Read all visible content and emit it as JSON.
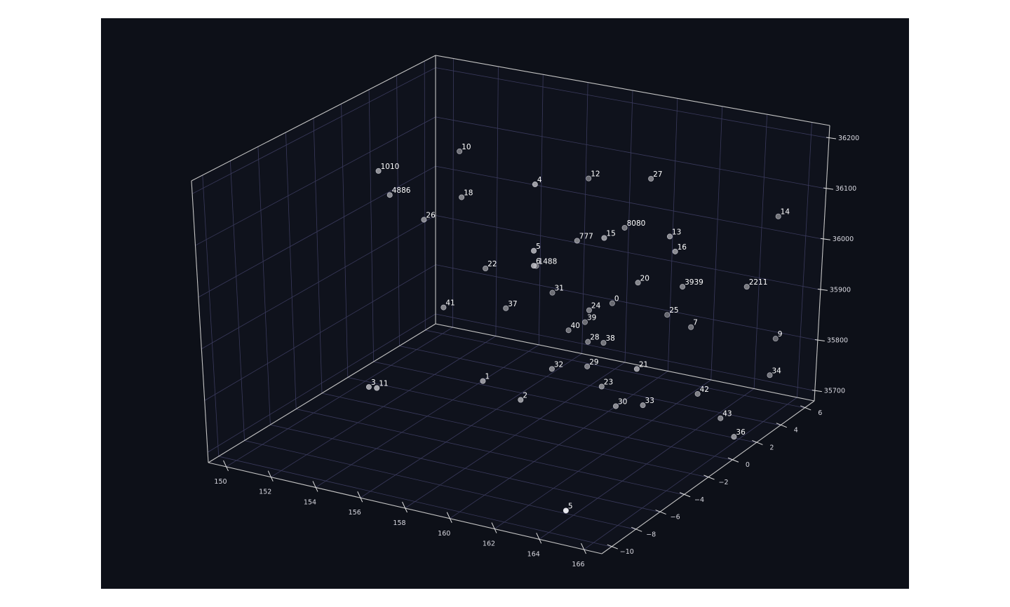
{
  "theme": {
    "figure_bg": "#ffffff",
    "axes_bg": "#0d1018",
    "grid_color": "#3a3a5c",
    "axis_line_color": "#c4c4c4",
    "tick_label_color": "#d8d8e0",
    "point_fill": "#b0b0b8",
    "point_edge": "#e8e8f0",
    "label_color": "#ffffff"
  },
  "chart_data": {
    "type": "scatter",
    "dimensions": "3d",
    "title": "",
    "xlabel": "",
    "ylabel": "",
    "zlabel": "",
    "grid": true,
    "xlim": [
      149.2,
      166.8
    ],
    "ylim": [
      -10.8,
      6.8
    ],
    "zlim": [
      35680,
      36225
    ],
    "xticks": [
      150,
      152,
      154,
      156,
      158,
      160,
      162,
      164,
      166
    ],
    "yticks": [
      -10,
      -8,
      -6,
      -4,
      -2,
      0,
      2,
      4,
      6
    ],
    "zticks": [
      35700,
      35800,
      35900,
      36000,
      36100,
      36200
    ],
    "xtick_labels": [
      "150",
      "152",
      "154",
      "156",
      "158",
      "160",
      "162",
      "164",
      "166"
    ],
    "ytick_labels": [
      "−10",
      "−8",
      "−6",
      "−4",
      "−2",
      "0",
      "2",
      "4",
      "6"
    ],
    "ztick_labels": [
      "35700",
      "35800",
      "35900",
      "36000",
      "36100",
      "36200"
    ],
    "points": [
      {
        "label": "0",
        "x": 157.8,
        "y": 6.0,
        "z": 35810
      },
      {
        "label": "1",
        "x": 155.1,
        "y": 0.5,
        "z": 35720
      },
      {
        "label": "2",
        "x": 157.0,
        "y": 0.2,
        "z": 35705
      },
      {
        "label": "3",
        "x": 151.0,
        "y": -1.4,
        "z": 35700
      },
      {
        "label": "4",
        "x": 158.1,
        "y": -0.6,
        "z": 36160
      },
      {
        "label": "5",
        "x": 158.4,
        "y": -1.2,
        "z": 36040
      },
      {
        "label": "6",
        "x": 158.4,
        "y": -1.2,
        "z": 36010
      },
      {
        "label": "7",
        "x": 162.1,
        "y": 4.8,
        "z": 35820
      },
      {
        "label": "9",
        "x": 165.2,
        "y": 6.2,
        "z": 35800
      },
      {
        "label": "10",
        "x": 151.5,
        "y": 4.8,
        "z": 36080
      },
      {
        "label": "11",
        "x": 151.6,
        "y": -1.8,
        "z": 35710
      },
      {
        "label": "12",
        "x": 156.6,
        "y": 6.0,
        "z": 36050
      },
      {
        "label": "13",
        "x": 163.0,
        "y": 1.3,
        "z": 36070
      },
      {
        "label": "14",
        "x": 166.0,
        "y": 4.5,
        "z": 36080
      },
      {
        "label": "15",
        "x": 160.6,
        "y": 0.4,
        "z": 36060
      },
      {
        "label": "16",
        "x": 163.2,
        "y": 1.4,
        "z": 36040
      },
      {
        "label": "18",
        "x": 152.8,
        "y": 2.8,
        "z": 36030
      },
      {
        "label": "20",
        "x": 161.0,
        "y": 2.4,
        "z": 35940
      },
      {
        "label": "21",
        "x": 162.6,
        "y": -0.4,
        "z": 35830
      },
      {
        "label": "22",
        "x": 153.4,
        "y": 3.6,
        "z": 35880
      },
      {
        "label": "23",
        "x": 159.5,
        "y": 2.3,
        "z": 35720
      },
      {
        "label": "24",
        "x": 157.9,
        "y": 4.0,
        "z": 35830
      },
      {
        "label": "25",
        "x": 160.1,
        "y": 6.4,
        "z": 35800
      },
      {
        "label": "26",
        "x": 151.4,
        "y": 2.3,
        "z": 35980
      },
      {
        "label": "27",
        "x": 160.9,
        "y": 3.4,
        "z": 36130
      },
      {
        "label": "28",
        "x": 157.7,
        "y": 4.3,
        "z": 35760
      },
      {
        "label": "29",
        "x": 158.2,
        "y": 3.4,
        "z": 35730
      },
      {
        "label": "30",
        "x": 160.5,
        "y": 1.7,
        "z": 35700
      },
      {
        "label": "31",
        "x": 155.4,
        "y": 5.4,
        "z": 35820
      },
      {
        "label": "32",
        "x": 157.1,
        "y": 2.5,
        "z": 35730
      },
      {
        "label": "33",
        "x": 161.4,
        "y": 2.3,
        "z": 35700
      },
      {
        "label": "34",
        "x": 166.1,
        "y": 4.2,
        "z": 35770
      },
      {
        "label": "36",
        "x": 166.2,
        "y": 1.2,
        "z": 35700
      },
      {
        "label": "37",
        "x": 154.1,
        "y": 4.0,
        "z": 35800
      },
      {
        "label": "38",
        "x": 158.3,
        "y": 4.5,
        "z": 35760
      },
      {
        "label": "39",
        "x": 156.8,
        "y": 5.6,
        "z": 35770
      },
      {
        "label": "40",
        "x": 156.4,
        "y": 5.0,
        "z": 35760
      },
      {
        "label": "41",
        "x": 152.2,
        "y": 2.4,
        "z": 35810
      },
      {
        "label": "42",
        "x": 163.5,
        "y": 3.0,
        "z": 35730
      },
      {
        "label": "43",
        "x": 164.8,
        "y": 2.6,
        "z": 35700
      },
      {
        "label": "1010",
        "x": 150.3,
        "y": 0.8,
        "z": 36090
      },
      {
        "label": "4886",
        "x": 150.3,
        "y": 1.6,
        "z": 36030
      },
      {
        "label": "5",
        "x": 164.0,
        "y": -8.6,
        "z": 35700
      },
      {
        "label": "777",
        "x": 158.0,
        "y": 2.8,
        "z": 35990
      },
      {
        "label": "8080",
        "x": 159.2,
        "y": 4.4,
        "z": 36000
      },
      {
        "label": "1488",
        "x": 155.0,
        "y": 4.8,
        "z": 35880
      },
      {
        "label": "3939",
        "x": 162.5,
        "y": 3.3,
        "z": 35930
      },
      {
        "label": "2211",
        "x": 165.0,
        "y": 4.0,
        "z": 35940
      }
    ]
  }
}
